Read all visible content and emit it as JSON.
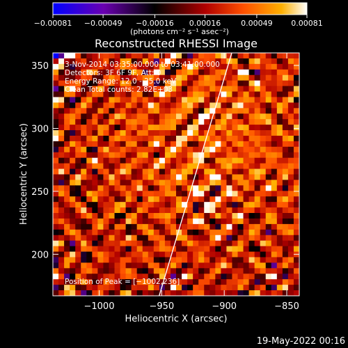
{
  "chart_data": {
    "type": "heatmap",
    "title": "Reconstructed RHESSI Image",
    "xlabel": "Heliocentric X (arcsec)",
    "ylabel": "Heliocentric Y (arcsec)",
    "xlim": [
      -1037,
      -840
    ],
    "ylim": [
      167,
      360
    ],
    "x_ticks": [
      -1000,
      -950,
      -900,
      -850
    ],
    "y_ticks": [
      200,
      250,
      300,
      350
    ],
    "x_tick_labels": [
      "−1000",
      "−950",
      "−900",
      "−850"
    ],
    "y_tick_labels": [
      "200",
      "250",
      "300",
      "350"
    ],
    "colorbar": {
      "min": -0.00081,
      "max": 0.00081,
      "ticks": [
        -0.00081,
        -0.00049,
        -0.00016,
        0.00016,
        0.00049,
        0.00081
      ],
      "tick_labels": [
        "−0.00081",
        "−0.00049",
        "−0.00016",
        "0.00016",
        "0.00049",
        "0.00081"
      ],
      "units": "(photons cm⁻² s⁻¹ asec⁻²)",
      "colormap": [
        "#0000ff",
        "#6a00b0",
        "#000000",
        "#b00000",
        "#ff5000",
        "#ffb000",
        "#ffffff"
      ]
    },
    "info_lines": [
      "3-Nov-2014 03:35:00.000 to 03:41:00.000",
      "Detectors: 3F 6F 9F, Att: 0",
      "Energy Range: 12.0 - 25.0 keV",
      "Clean      Total counts: 2.82E+03"
    ],
    "peak_text": "Position of Peak = [−1002,236]",
    "peak": [
      -1002,
      236
    ],
    "limb_line": [
      [
        -952,
        167
      ],
      [
        -894,
        360
      ]
    ]
  },
  "footer": {
    "timestamp": "19-May-2022 00:16"
  }
}
